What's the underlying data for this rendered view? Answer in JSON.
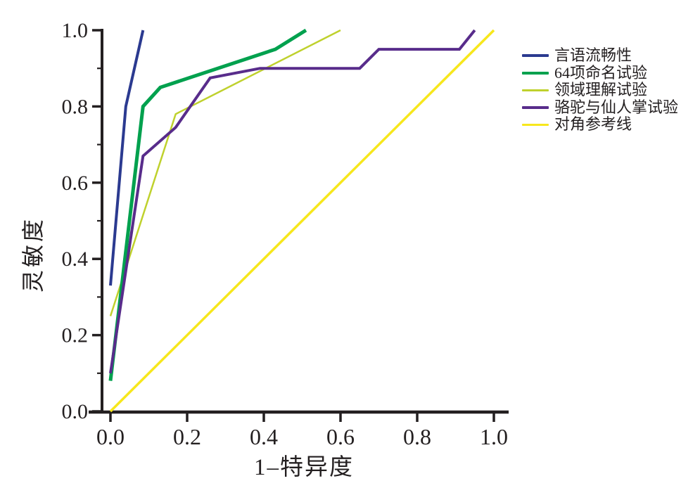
{
  "chart_data": {
    "type": "line",
    "title": "",
    "xlabel": "1–特异度",
    "ylabel": "灵敏度",
    "xlim": [
      0,
      1
    ],
    "ylim": [
      0,
      1
    ],
    "x_tick_labels": [
      "0.0",
      "0.2",
      "0.4",
      "0.6",
      "0.8",
      "1.0"
    ],
    "y_tick_labels": [
      "0.0",
      "0.2",
      "0.4",
      "0.6",
      "0.8",
      "1.0"
    ],
    "y_minor_ticks": [
      0.1,
      0.3,
      0.5,
      0.7,
      0.9
    ],
    "grid": false,
    "legend_position": "right-outside",
    "axis_color": "#231f20",
    "background_color": "#ffffff",
    "series": [
      {
        "key": "verbal-fluency",
        "name": "言语流畅性",
        "color": "#2b3a90",
        "line_width": 4,
        "points": [
          [
            0,
            0.33
          ],
          [
            0.04,
            0.8
          ],
          [
            0.085,
            1.0
          ]
        ]
      },
      {
        "key": "naming-64-item",
        "name": "64项命名试验",
        "color": "#00a14e",
        "line_width": 5,
        "points": [
          [
            0,
            0.08
          ],
          [
            0.085,
            0.8
          ],
          [
            0.13,
            0.85
          ],
          [
            0.43,
            0.95
          ],
          [
            0.51,
            1.0
          ]
        ]
      },
      {
        "key": "domain-comprehension",
        "name": "领域理解试验",
        "color": "#bfd12d",
        "line_width": 2.5,
        "points": [
          [
            0,
            0.25
          ],
          [
            0.17,
            0.78
          ],
          [
            0.6,
            1.0
          ]
        ]
      },
      {
        "key": "camel-cactus",
        "name": "骆驼与仙人掌试验",
        "color": "#582c8b",
        "line_width": 4,
        "points": [
          [
            0,
            0.1
          ],
          [
            0.085,
            0.67
          ],
          [
            0.17,
            0.745
          ],
          [
            0.26,
            0.875
          ],
          [
            0.39,
            0.9
          ],
          [
            0.65,
            0.9
          ],
          [
            0.7,
            0.95
          ],
          [
            0.91,
            0.95
          ],
          [
            0.95,
            1.0
          ]
        ]
      },
      {
        "key": "reference-diagonal",
        "name": "对角参考线",
        "color": "#f7e71c",
        "line_width": 3.5,
        "points": [
          [
            0,
            0
          ],
          [
            1,
            1
          ]
        ]
      }
    ]
  }
}
